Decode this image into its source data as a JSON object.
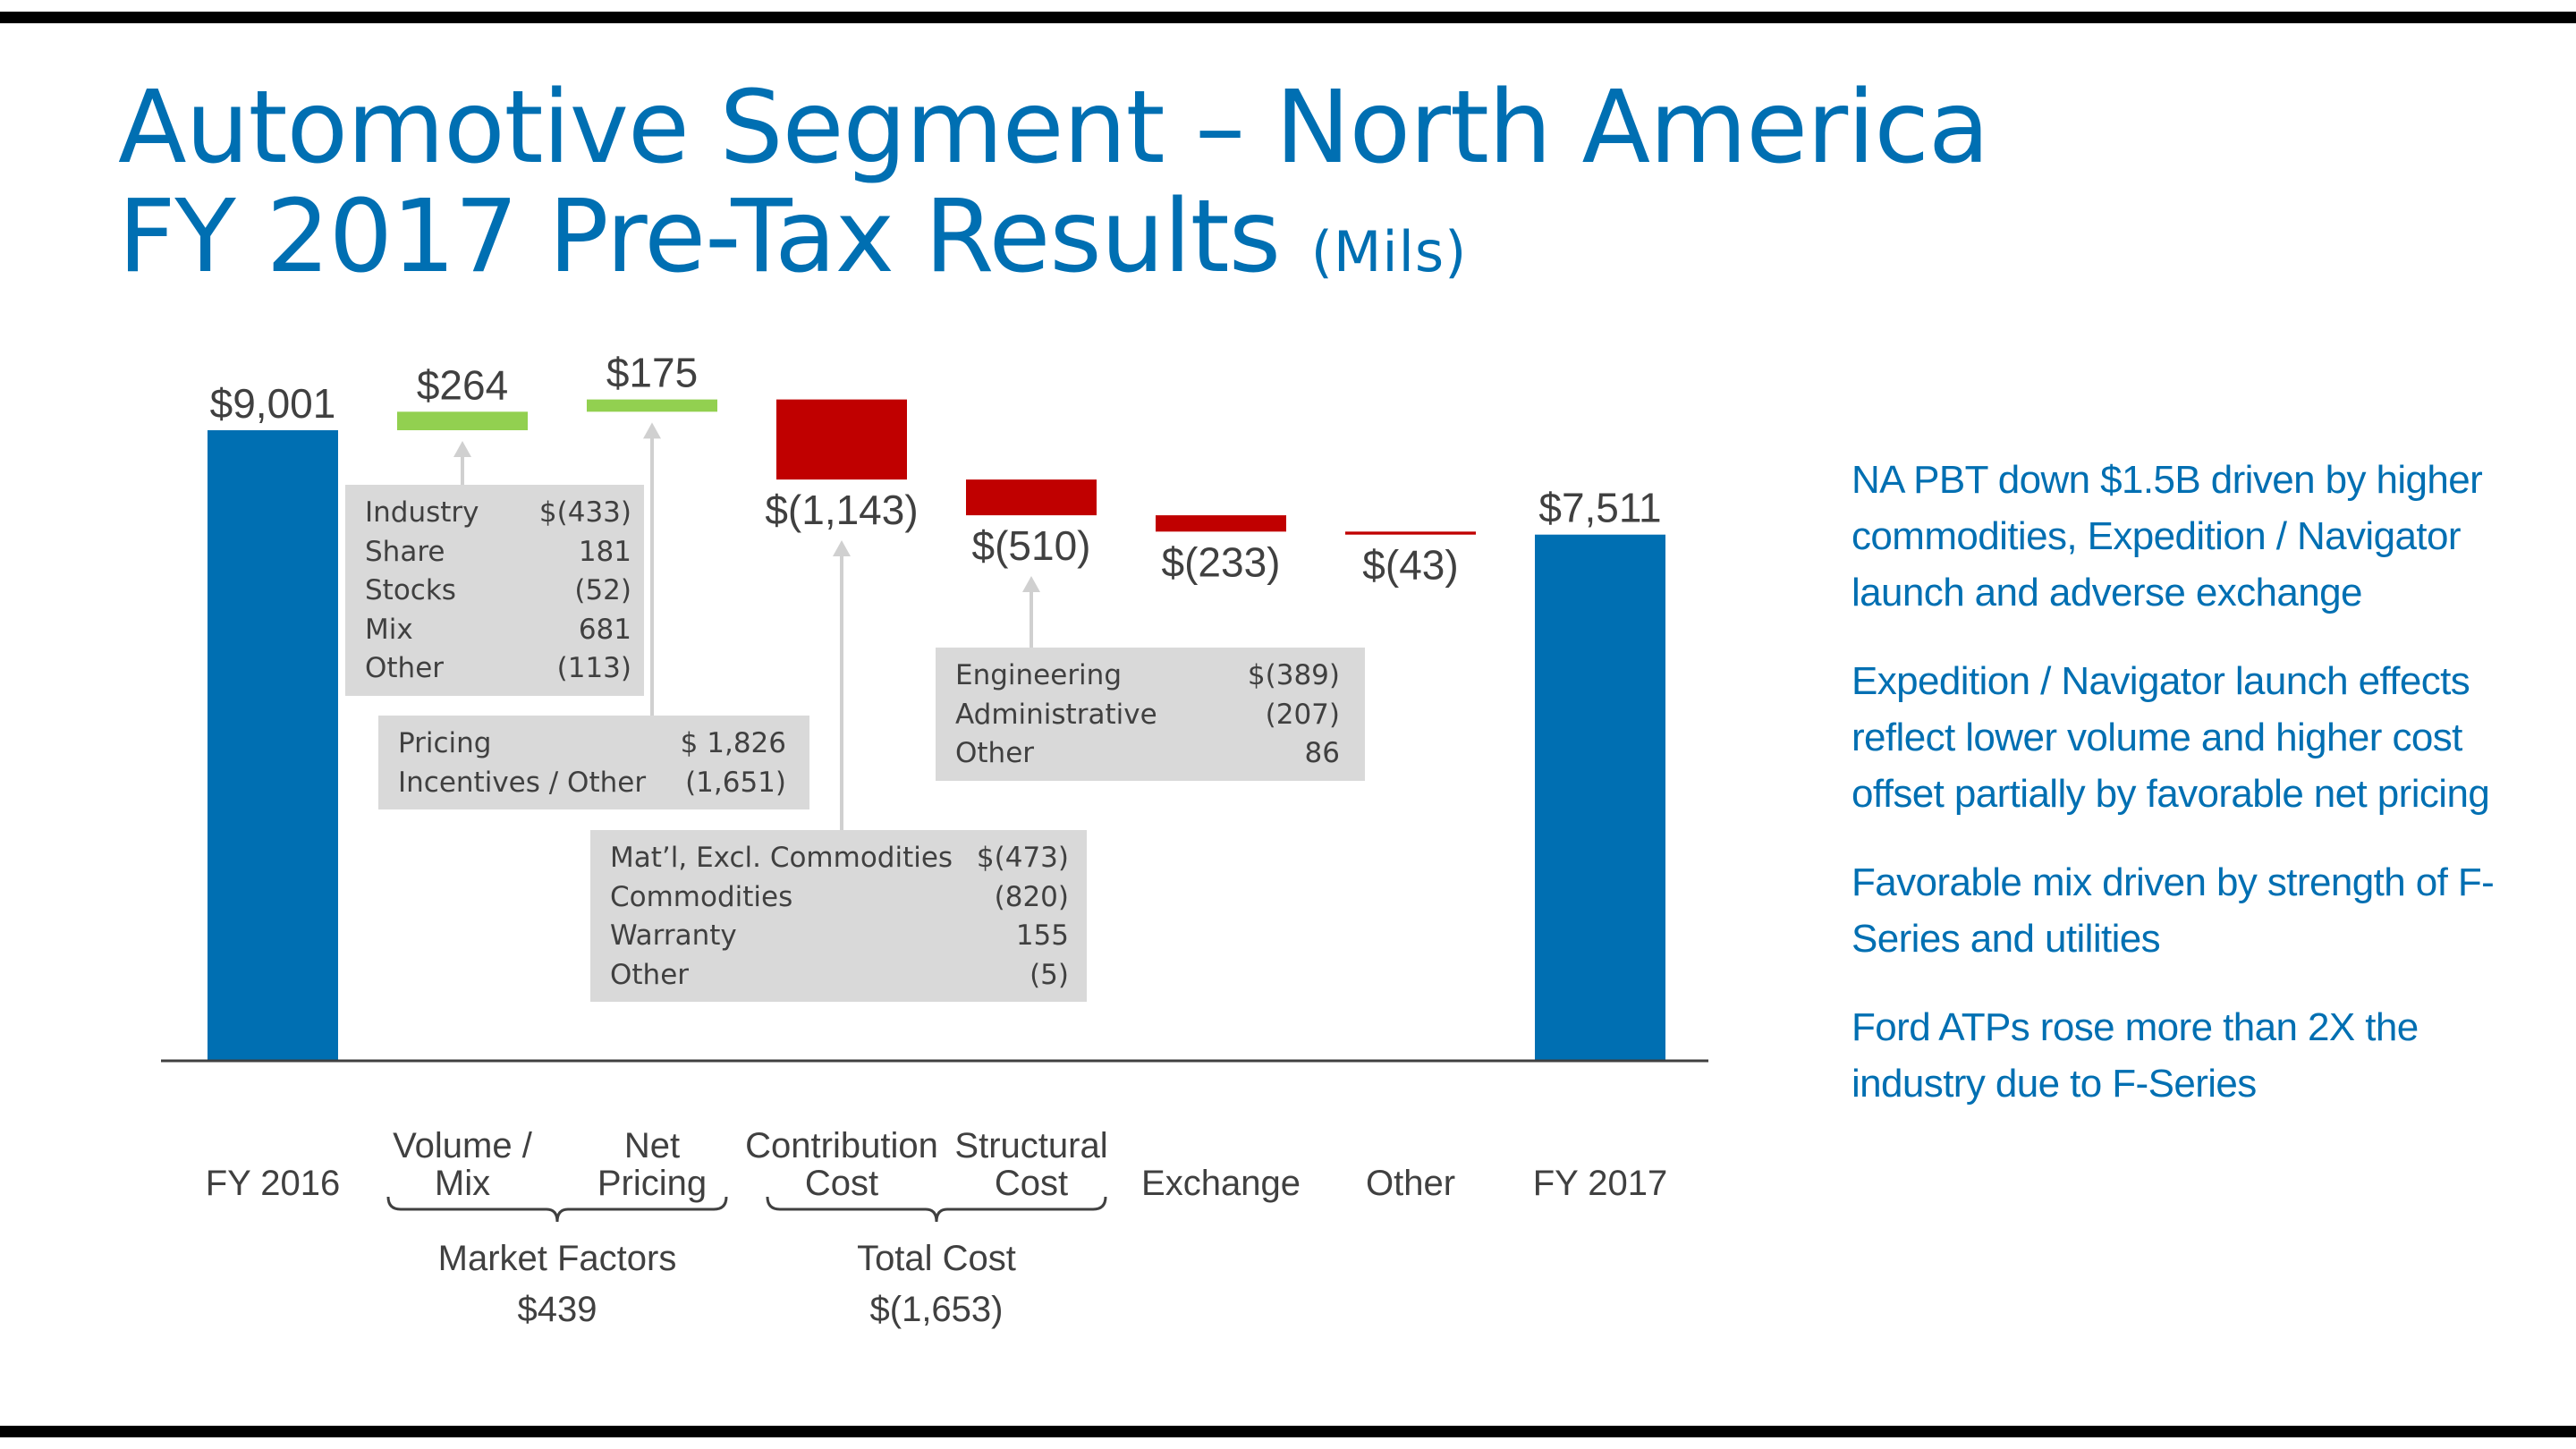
{
  "slide": {
    "title_line1": "Automotive Segment – North America",
    "title_line2": "FY 2017 Pre-Tax Results",
    "title_units": "(Mils)"
  },
  "colors": {
    "title": "#006FB2",
    "total_bar": "#006FB2",
    "increase_bar": "#92D050",
    "decrease_bar": "#C00000",
    "detail_box": "#D9D9D9",
    "label_text": "#404040"
  },
  "chart_data": {
    "type": "waterfall",
    "title": "",
    "categories": [
      "FY 2016",
      "Volume / Mix",
      "Net Pricing",
      "Contribution Cost",
      "Structural Cost",
      "Exchange",
      "Other",
      "FY 2017"
    ],
    "category_lines": [
      [
        "FY 2016"
      ],
      [
        "Volume /",
        "Mix"
      ],
      [
        "Net",
        "Pricing"
      ],
      [
        "Contribution",
        "Cost"
      ],
      [
        "Structural",
        "Cost"
      ],
      [
        "Exchange"
      ],
      [
        "Other"
      ],
      [
        "FY 2017"
      ]
    ],
    "values": [
      9001,
      264,
      175,
      -1143,
      -510,
      -233,
      -43,
      7511
    ],
    "kinds": [
      "total",
      "delta",
      "delta",
      "delta",
      "delta",
      "delta",
      "delta",
      "total"
    ],
    "data_labels": [
      "$9,001",
      "$264",
      "$175",
      "$(1,143)",
      "$(510)",
      "$(233)",
      "$(43)",
      "$7,511"
    ],
    "axis_base": 0,
    "groups": [
      {
        "name": "Market Factors",
        "value_label": "$439",
        "from": 1,
        "to": 2
      },
      {
        "name": "Total Cost",
        "value_label": "$(1,653)",
        "from": 3,
        "to": 4
      }
    ]
  },
  "details": {
    "volume_mix": [
      {
        "label": "Industry",
        "value": "$(433)"
      },
      {
        "label": "Share",
        "value": "181"
      },
      {
        "label": "Stocks",
        "value": "(52)"
      },
      {
        "label": "Mix",
        "value": "681"
      },
      {
        "label": "Other",
        "value": "(113)"
      }
    ],
    "net_pricing": [
      {
        "label": "Pricing",
        "value": "$ 1,826"
      },
      {
        "label": "Incentives / Other",
        "value": "(1,651)"
      }
    ],
    "contribution_cost": [
      {
        "label": "Mat’l, Excl. Commodities",
        "value": "$(473)"
      },
      {
        "label": "Commodities",
        "value": "(820)"
      },
      {
        "label": "Warranty",
        "value": "155"
      },
      {
        "label": "Other",
        "value": "(5)"
      }
    ],
    "structural_cost": [
      {
        "label": "Engineering",
        "value": "$(389)"
      },
      {
        "label": "Administrative",
        "value": "(207)"
      },
      {
        "label": "Other",
        "value": "86"
      }
    ]
  },
  "commentary": [
    "NA PBT down $1.5B driven by higher commodities, Expedition / Navigator launch and adverse exchange",
    "Expedition / Navigator launch effects reflect lower volume and higher cost offset partially by favorable net pricing",
    "Favorable mix driven by strength of F-Series and utilities",
    "Ford ATPs rose more than 2X the industry due to F-Series"
  ]
}
